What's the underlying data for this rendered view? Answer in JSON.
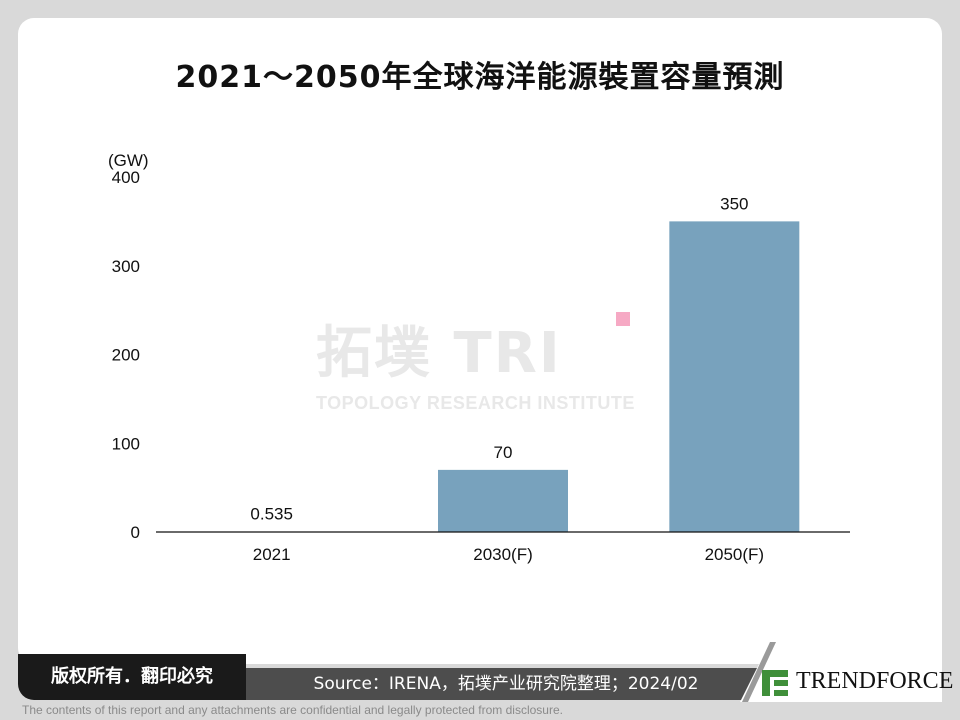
{
  "title": "2021～2050年全球海洋能源裝置容量預測",
  "watermark": {
    "main": "拓墣 TRI",
    "sub": "TOPOLOGY RESEARCH INSTITUTE"
  },
  "chart_data": {
    "type": "bar",
    "title": "2021～2050年全球海洋能源裝置容量預測",
    "categories": [
      "2021",
      "2030(F)",
      "2050(F)"
    ],
    "values": [
      0.535,
      70,
      350
    ],
    "data_labels": [
      "0.535",
      "70",
      "350"
    ],
    "ylabel": "(GW)",
    "xlabel": "",
    "ylim": [
      0,
      400
    ],
    "yticks": [
      0,
      100,
      200,
      300,
      400
    ],
    "grid": false,
    "bar_color": "#78a2bd",
    "legend": "none"
  },
  "footer": {
    "copyright": "版权所有．翻印必究",
    "source": "Source：IRENA，拓墣产业研究院整理；2024/02",
    "brand": "TRENDFORCE",
    "disclaimer": "The contents of this report and any attachments are confidential and legally protected from disclosure."
  },
  "colors": {
    "brand_green": "#3f8f3a",
    "footer_dark": "#1a1a1a",
    "source_bg": "#4d4d4d"
  }
}
